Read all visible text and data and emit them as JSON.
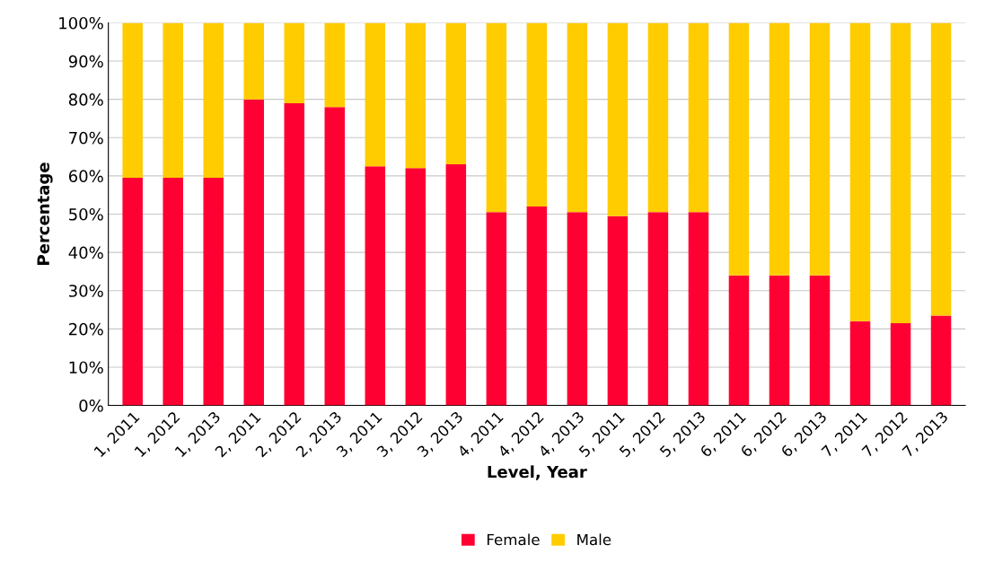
{
  "chart_data": {
    "type": "bar",
    "stacked": true,
    "xlabel": "Level, Year",
    "ylabel": "Percentage",
    "categories": [
      "1, 2011",
      "1, 2012",
      "1, 2013",
      "2, 2011",
      "2, 2012",
      "2, 2013",
      "3, 2011",
      "3, 2012",
      "3, 2013",
      "4, 2011",
      "4, 2012",
      "4, 2013",
      "5, 2011",
      "5, 2012",
      "5, 2013",
      "6, 2011",
      "6, 2012",
      "6, 2013",
      "7, 2011",
      "7, 2012",
      "7, 2013"
    ],
    "series": [
      {
        "name": "Female",
        "color": "#ff0033",
        "values": [
          59.5,
          59.5,
          59.5,
          80,
          79,
          78,
          62.5,
          62,
          63,
          50.5,
          52,
          50.5,
          49.5,
          50.5,
          50.5,
          34,
          34,
          34,
          22,
          21.5,
          23.5
        ]
      },
      {
        "name": "Male",
        "color": "#ffcc00",
        "values": [
          40.5,
          40.5,
          40.5,
          20,
          21,
          22,
          37.5,
          38,
          37,
          49.5,
          48,
          49.5,
          50.5,
          49.5,
          49.5,
          66,
          66,
          66,
          78,
          78.5,
          76.5
        ]
      }
    ],
    "ylim": [
      0,
      100
    ],
    "yticks": [
      {
        "value": 0,
        "label": "0%"
      },
      {
        "value": 10,
        "label": "10%"
      },
      {
        "value": 20,
        "label": "20%"
      },
      {
        "value": 30,
        "label": "30%"
      },
      {
        "value": 40,
        "label": "40%"
      },
      {
        "value": 50,
        "label": "50%"
      },
      {
        "value": 60,
        "label": "60%"
      },
      {
        "value": 70,
        "label": "70%"
      },
      {
        "value": 80,
        "label": "80%"
      },
      {
        "value": 90,
        "label": "90%"
      },
      {
        "value": 100,
        "label": "100%"
      }
    ],
    "grid": "y",
    "legend": "bottom"
  }
}
